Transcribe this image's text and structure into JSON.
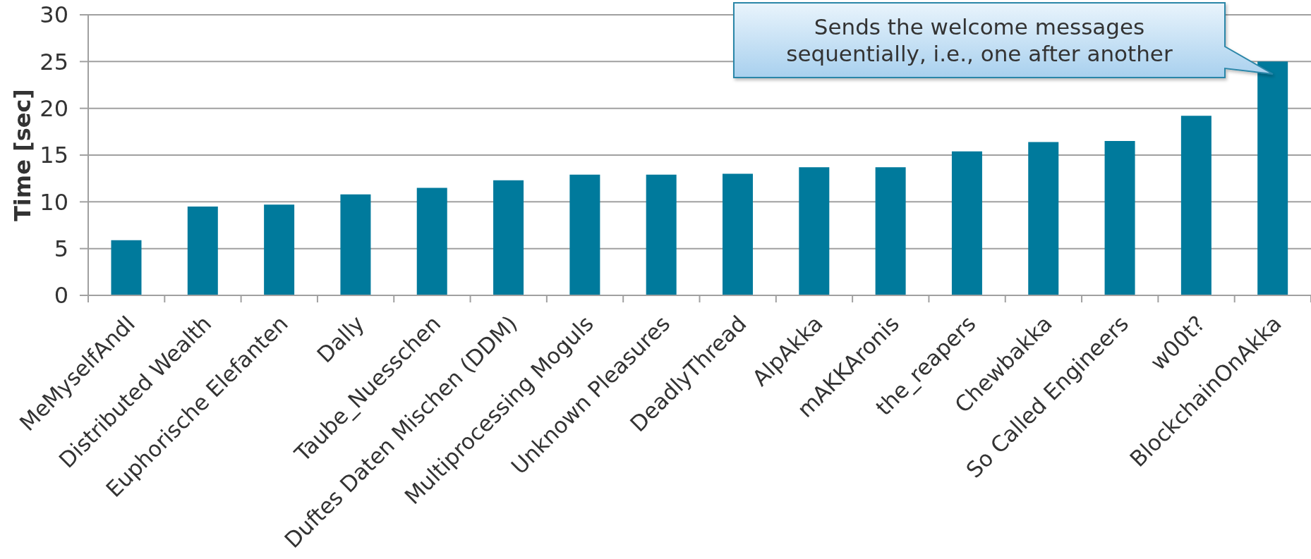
{
  "chart_data": {
    "type": "bar",
    "ylabel": "Time [sec]",
    "categories": [
      "MeMyselfAndI",
      "Distributed Wealth",
      "Euphorische Elefanten",
      "Dally",
      "Taube_Nuesschen",
      "Duftes Daten Mischen (DDM)",
      "Multiprocessing Moguls",
      "Unknown Pleasures",
      "DeadlyThread",
      "AlpAkka",
      "mAKKAronis",
      "the_reapers",
      "Chewbakka",
      "So Called Engineers",
      "w00t?",
      "BlockchainOnAkka"
    ],
    "values": [
      5.9,
      9.5,
      9.7,
      10.8,
      11.5,
      12.3,
      12.9,
      12.9,
      13.0,
      13.7,
      13.7,
      15.4,
      16.4,
      16.5,
      19.2,
      25.0
    ],
    "color": "#007a9c",
    "ylim": [
      0,
      30
    ],
    "yticks": [
      0,
      5,
      10,
      15,
      20,
      25,
      30
    ],
    "grid": "y",
    "annotations": [
      "Sends the welcome messages sequentially, i.e., one after another"
    ]
  }
}
